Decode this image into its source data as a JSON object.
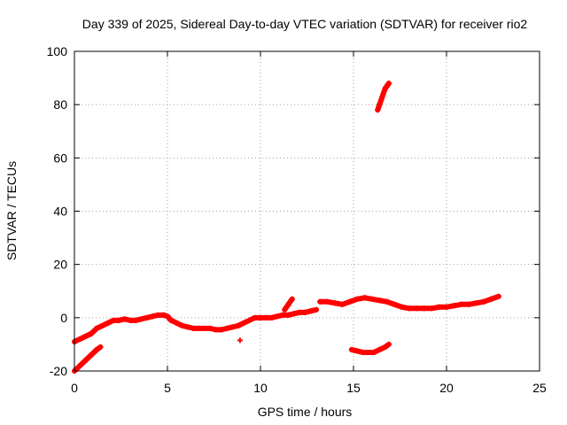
{
  "chart_data": {
    "type": "scatter",
    "title": "Day 339 of 2025, Sidereal Day-to-day VTEC variation (SDTVAR) for receiver rio2",
    "xlabel": "GPS time / hours",
    "ylabel": "SDTVAR / TECUs",
    "xlim": [
      0,
      25
    ],
    "ylim": [
      -20,
      100
    ],
    "xticks": [
      "0",
      "5",
      "10",
      "15",
      "20",
      "25"
    ],
    "yticks": [
      "-20",
      "0",
      "20",
      "40",
      "60",
      "80",
      "100"
    ],
    "grid": true,
    "series_color": "#ff0000",
    "series": [
      {
        "name": "main",
        "x": [
          0,
          0.3,
          0.6,
          0.9,
          1.2,
          1.5,
          1.8,
          2.1,
          2.4,
          2.7,
          3.0,
          3.3,
          3.6,
          3.9,
          4.2,
          4.5,
          4.8,
          5.0,
          5.2,
          5.5,
          5.8,
          6.1,
          6.4,
          6.7,
          7.0,
          7.3,
          7.6,
          7.9,
          8.2,
          8.5,
          8.8,
          9.1,
          9.4,
          9.7,
          10.0,
          10.3,
          10.6,
          10.9,
          11.2,
          11.5,
          11.8,
          12.1,
          12.4,
          12.7,
          13.0
        ],
        "y": [
          -9,
          -8,
          -7,
          -6,
          -4,
          -3,
          -2,
          -1,
          -1,
          -0.5,
          -1,
          -1,
          -0.5,
          0,
          0.5,
          1,
          1,
          0.5,
          -1,
          -2,
          -3,
          -3.5,
          -4,
          -4,
          -4,
          -4,
          -4.5,
          -4.5,
          -4,
          -3.5,
          -3,
          -2,
          -1,
          0,
          0,
          0,
          0,
          0.5,
          1,
          1,
          1.5,
          2,
          2,
          2.5,
          3
        ]
      },
      {
        "name": "upper",
        "x": [
          13.2,
          13.6,
          14.0,
          14.4,
          14.8,
          15.2,
          15.6,
          16.0,
          16.4,
          16.8,
          17.2,
          17.6,
          18.0,
          18.4,
          18.8,
          19.2,
          19.6,
          20.0,
          20.4,
          20.8,
          21.2,
          21.6,
          22.0,
          22.4,
          22.8
        ],
        "y": [
          6,
          6,
          5.5,
          5,
          6,
          7,
          7.5,
          7,
          6.5,
          6,
          5,
          4,
          3.5,
          3.5,
          3.5,
          3.5,
          4,
          4,
          4.5,
          5,
          5,
          5.5,
          6,
          7,
          8
        ]
      },
      {
        "name": "spike",
        "x": [
          11.3,
          11.5,
          11.7
        ],
        "y": [
          3,
          5,
          7
        ]
      },
      {
        "name": "early-low",
        "x": [
          0,
          0.3,
          0.6,
          0.9,
          1.2,
          1.4
        ],
        "y": [
          -20,
          -18,
          -16,
          -14,
          -12,
          -11
        ]
      },
      {
        "name": "mid-low",
        "x": [
          14.9,
          15.2,
          15.5,
          15.8,
          16.1,
          16.4,
          16.7,
          16.9
        ],
        "y": [
          -12,
          -12.5,
          -13,
          -13,
          -13,
          -12,
          -11,
          -10
        ]
      },
      {
        "name": "high",
        "x": [
          16.3,
          16.4,
          16.5,
          16.6,
          16.7,
          16.8,
          16.9
        ],
        "y": [
          78,
          80,
          82,
          84,
          86,
          87,
          88
        ]
      },
      {
        "name": "outlier",
        "x": [
          8.9
        ],
        "y": [
          -8.5
        ]
      }
    ]
  }
}
